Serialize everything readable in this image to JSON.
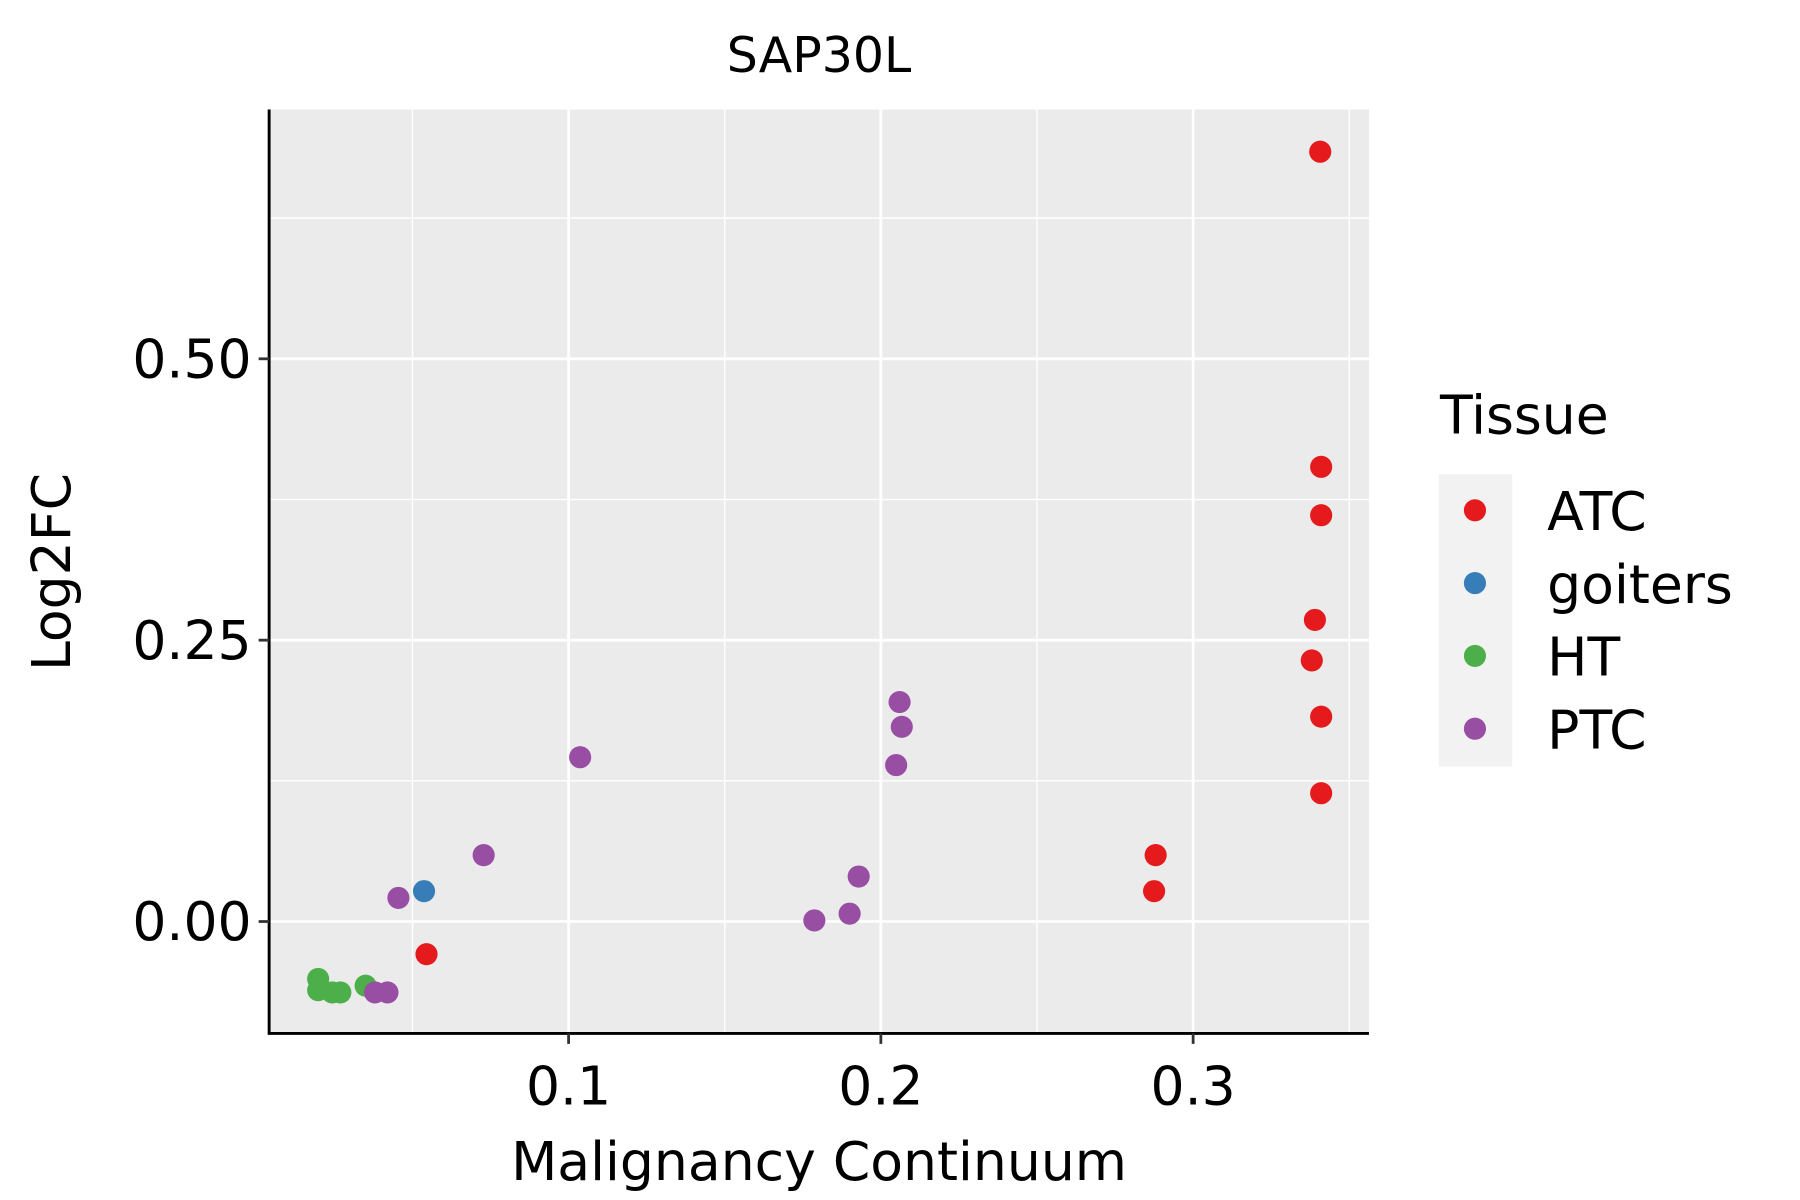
{
  "chart_data": {
    "type": "scatter",
    "title": "SAP30L",
    "xlabel": "Malignancy Continuum",
    "ylabel": "Log2FC",
    "xlim": [
      0.0041,
      0.3563
    ],
    "ylim": [
      -0.0994,
      0.7215
    ],
    "xticks": [
      {
        "v": 0.1,
        "label": "0.1"
      },
      {
        "v": 0.2,
        "label": "0.2"
      },
      {
        "v": 0.3,
        "label": "0.3"
      }
    ],
    "yticks": [
      {
        "v": 0.0,
        "label": "0.00"
      },
      {
        "v": 0.25,
        "label": "0.25"
      },
      {
        "v": 0.5,
        "label": "0.50"
      }
    ],
    "xminor": [
      0.05,
      0.15,
      0.25,
      0.35
    ],
    "yminor": [
      0.125,
      0.375,
      0.625
    ],
    "grid": true,
    "legend": {
      "title": "Tissue",
      "placement": "right"
    },
    "series": [
      {
        "name": "ATC",
        "color": "#E41A1C",
        "points": [
          [
            0.3407,
            0.684
          ],
          [
            0.341,
            0.404
          ],
          [
            0.341,
            0.361
          ],
          [
            0.339,
            0.268
          ],
          [
            0.338,
            0.232
          ],
          [
            0.341,
            0.182
          ],
          [
            0.341,
            0.114
          ],
          [
            0.288,
            0.059
          ],
          [
            0.2875,
            0.027
          ],
          [
            0.0545,
            -0.029
          ]
        ]
      },
      {
        "name": "goiters",
        "color": "#377EB8",
        "points": [
          [
            0.0537,
            0.027
          ]
        ]
      },
      {
        "name": "HT",
        "color": "#4DAF4A",
        "points": [
          [
            0.0198,
            -0.051
          ],
          [
            0.0198,
            -0.061
          ],
          [
            0.0243,
            -0.063
          ],
          [
            0.0269,
            -0.063
          ],
          [
            0.035,
            -0.057
          ]
        ]
      },
      {
        "name": "PTC",
        "color": "#984EA3",
        "points": [
          [
            0.0455,
            0.021
          ],
          [
            0.0728,
            0.059
          ],
          [
            0.1037,
            0.146
          ],
          [
            0.206,
            0.195
          ],
          [
            0.2067,
            0.173
          ],
          [
            0.2049,
            0.139
          ],
          [
            0.1929,
            0.04
          ],
          [
            0.19,
            0.007
          ],
          [
            0.1787,
            0.001
          ],
          [
            0.038,
            -0.063
          ],
          [
            0.042,
            -0.063
          ]
        ]
      }
    ]
  }
}
